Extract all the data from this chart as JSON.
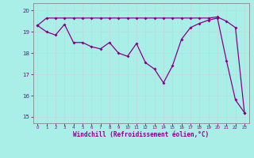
{
  "xlabel": "Windchill (Refroidissement éolien,°C)",
  "ylabel": "",
  "bg_color": "#aaeee8",
  "line_color": "#880088",
  "grid_color": "#cceeee",
  "xlim": [
    -0.5,
    23.5
  ],
  "ylim": [
    14.7,
    20.35
  ],
  "yticks": [
    15,
    16,
    17,
    18,
    19,
    20
  ],
  "xticks": [
    0,
    1,
    2,
    3,
    4,
    5,
    6,
    7,
    8,
    9,
    10,
    11,
    12,
    13,
    14,
    15,
    16,
    17,
    18,
    19,
    20,
    21,
    22,
    23
  ],
  "series1_x": [
    0,
    1,
    2,
    3,
    4,
    5,
    6,
    7,
    8,
    9,
    10,
    11,
    12,
    13,
    14,
    15,
    16,
    17,
    18,
    19,
    20,
    21,
    22,
    23
  ],
  "series1_y": [
    19.3,
    19.0,
    18.85,
    19.35,
    18.5,
    18.5,
    18.3,
    18.2,
    18.5,
    18.0,
    17.85,
    18.45,
    17.55,
    17.25,
    16.6,
    17.4,
    18.65,
    19.2,
    19.4,
    19.55,
    19.65,
    17.65,
    15.8,
    15.2
  ],
  "series2_x": [
    0,
    1,
    2,
    3,
    4,
    5,
    6,
    7,
    8,
    9,
    10,
    11,
    12,
    13,
    14,
    15,
    16,
    17,
    18,
    19,
    20,
    21,
    22,
    23
  ],
  "series2_y": [
    19.3,
    19.65,
    19.65,
    19.65,
    19.65,
    19.65,
    19.65,
    19.65,
    19.65,
    19.65,
    19.65,
    19.65,
    19.65,
    19.65,
    19.65,
    19.65,
    19.65,
    19.65,
    19.65,
    19.65,
    19.7,
    19.5,
    19.2,
    15.2
  ]
}
